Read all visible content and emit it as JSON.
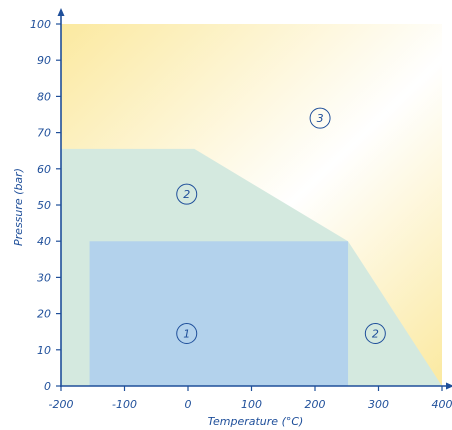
{
  "chart_data": {
    "type": "area",
    "xlabel": "Temperature (°C)",
    "ylabel": "Pressure (bar)",
    "xlim": [
      -200,
      400
    ],
    "ylim": [
      0,
      100
    ],
    "xticks": [
      -200,
      -100,
      0,
      100,
      200,
      300,
      400
    ],
    "yticks": [
      0,
      10,
      20,
      30,
      40,
      50,
      60,
      70,
      80,
      90,
      100
    ],
    "regions": [
      {
        "label": "3",
        "color": "#fbe9a0",
        "polygon": [
          [
            -200,
            0
          ],
          [
            400,
            0
          ],
          [
            400,
            100
          ],
          [
            -200,
            100
          ]
        ],
        "label_pos": [
          208,
          74
        ]
      },
      {
        "label": "2",
        "color": "#d4e9df",
        "polygon": [
          [
            -200,
            0
          ],
          [
            400,
            0
          ],
          [
            252,
            40
          ],
          [
            10,
            65.5
          ],
          [
            -200,
            65.5
          ]
        ],
        "label_pos": [
          -2,
          53
        ],
        "label_pos2": [
          295,
          14.5
        ]
      },
      {
        "label": "1",
        "color": "#b3d2ec",
        "polygon": [
          [
            -155,
            0
          ],
          [
            252,
            0
          ],
          [
            252,
            40
          ],
          [
            -155,
            40
          ]
        ],
        "label_pos": [
          -2,
          14.5
        ]
      }
    ],
    "colors": {
      "axis": "#1f4f9a",
      "text": "#1f4f9a"
    }
  }
}
